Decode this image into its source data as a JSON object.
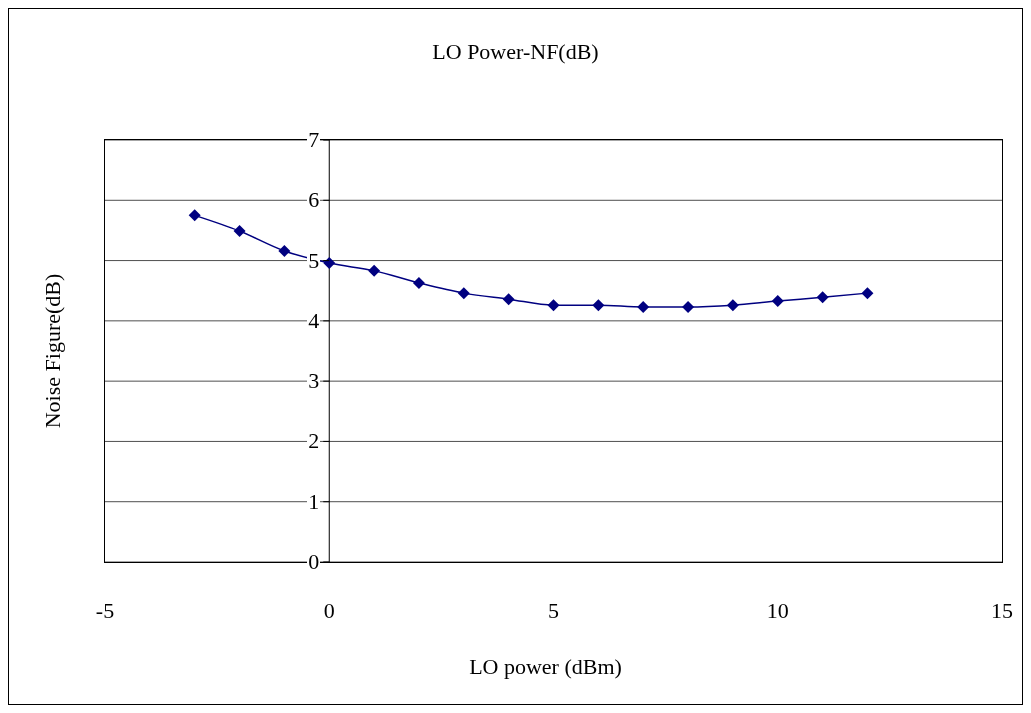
{
  "chart_data": {
    "type": "line",
    "title": "LO Power-NF(dB)",
    "xlabel": "LO power (dBm)",
    "ylabel": "Noise Figure(dB)",
    "x": [
      -3,
      -2,
      -1,
      0,
      1,
      2,
      3,
      4,
      5,
      6,
      7,
      8,
      9,
      10,
      11,
      12
    ],
    "series": [
      {
        "color": "#000080",
        "values": [
          5.75,
          5.49,
          5.16,
          4.96,
          4.83,
          4.63,
          4.46,
          4.36,
          4.26,
          4.26,
          4.23,
          4.23,
          4.26,
          4.33,
          4.39,
          4.46
        ]
      }
    ],
    "xlim": [
      -5,
      15
    ],
    "xticks": [
      -5,
      0,
      5,
      10,
      15
    ],
    "ylim": [
      0,
      7
    ],
    "yticks": [
      0,
      1,
      2,
      3,
      4,
      5,
      6,
      7
    ],
    "grid": "y",
    "marker": "diamond",
    "line_style": "solid"
  }
}
